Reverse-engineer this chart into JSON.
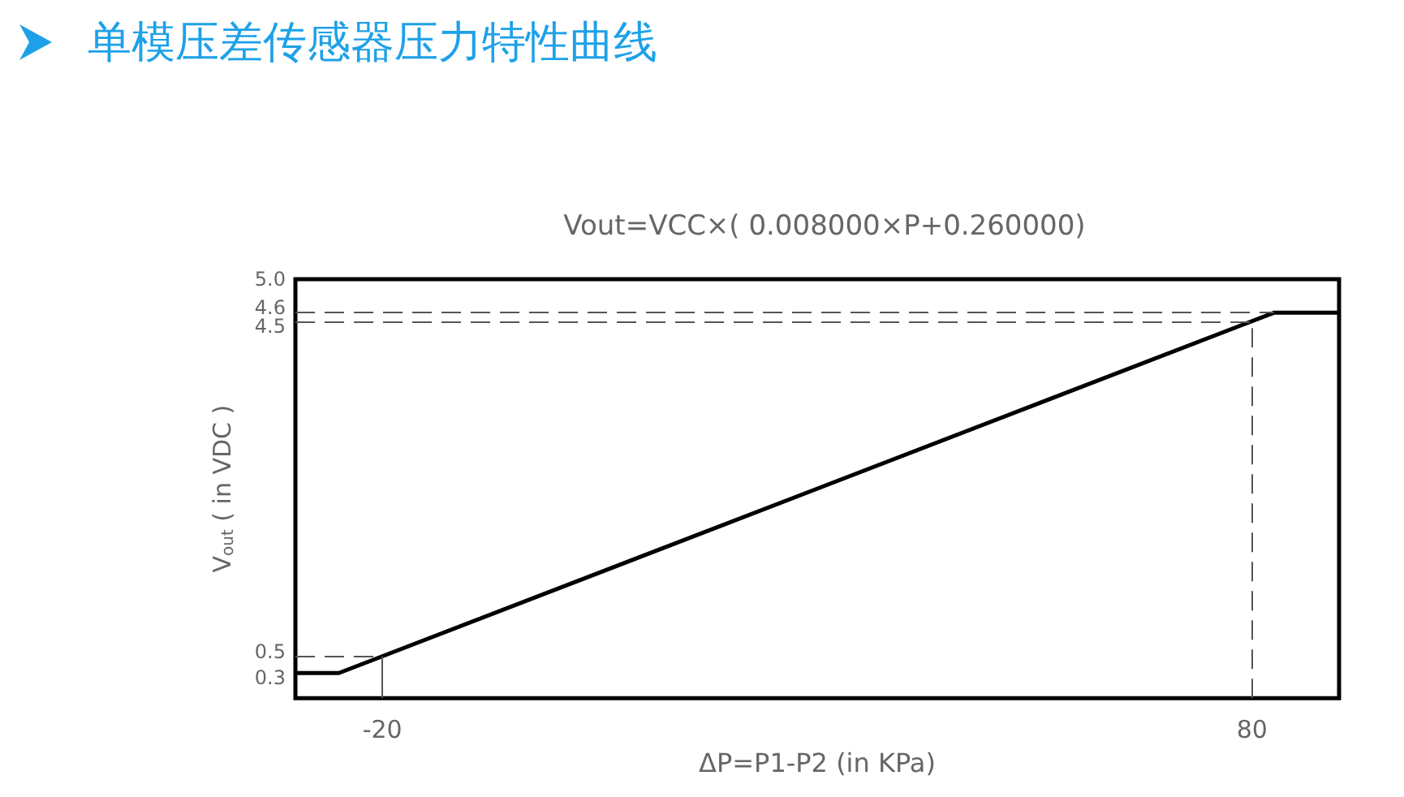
{
  "chart_data": {
    "type": "line",
    "title": "单模压差传感器压力特性曲线",
    "subtitle": "Vout=VCC×( 0.008000×P+0.260000)",
    "xlabel": "ΔP=P1-P2 (in KPa)",
    "ylabel": "V$_{out}$ ( in VDC )",
    "x": [
      -30,
      -25,
      82.5,
      90
    ],
    "values": [
      0.3,
      0.3,
      4.6,
      4.6
    ],
    "color": "#000000",
    "xlim": [
      -30,
      90
    ],
    "xticks": [
      -20,
      80
    ],
    "ylim": [
      0,
      5
    ],
    "yticks": [
      0.3,
      0.5,
      4.5,
      4.6,
      {
        "value": 5,
        "label": "5.0"
      }
    ],
    "ref_lines": [
      {
        "axis": "y",
        "value": 0.5,
        "color": "#555555",
        "line_style": "dashed"
      },
      {
        "axis": "y",
        "value": 4.5,
        "color": "#555555",
        "line_style": "dashed"
      },
      {
        "axis": "y",
        "value": 4.6,
        "color": "#555555",
        "line_style": "dashed"
      },
      {
        "axis": "x",
        "value": -20,
        "color": "#555555",
        "line_style": "solid"
      },
      {
        "axis": "x",
        "value": 80,
        "color": "#555555",
        "line_style": "dashed"
      }
    ],
    "grid": false,
    "marker": "none",
    "line_style": "solid"
  }
}
